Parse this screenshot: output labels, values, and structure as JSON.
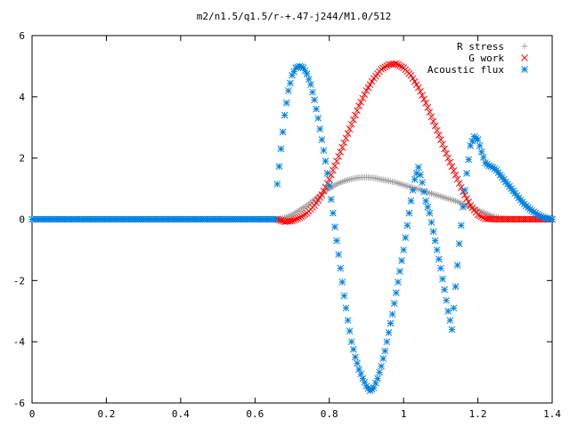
{
  "chart_data": {
    "type": "scatter",
    "title": "m2/n1.5/q1.5/r-+.47-j244/M1.0/512",
    "xlabel": "",
    "ylabel": "",
    "xlim": [
      0,
      1.4
    ],
    "ylim": [
      -6,
      6
    ],
    "xticks": [
      0,
      0.2,
      0.4,
      0.6,
      0.8,
      1,
      1.2,
      1.4
    ],
    "xtick_labels": [
      "0",
      "0.2",
      "0.4",
      "0.6",
      "0.8",
      "1",
      "1.2",
      "1.4"
    ],
    "yticks": [
      -6,
      -4,
      -2,
      0,
      2,
      4,
      6
    ],
    "ytick_labels": [
      "-6",
      "-4",
      "-2",
      "0",
      "2",
      "4",
      "6"
    ],
    "grid": false,
    "legend_position": "top-right",
    "series": [
      {
        "name": "R stress",
        "marker": "+",
        "color": "#a0a0a0",
        "points": [
          [
            0.0,
            0
          ],
          [
            0.2,
            0
          ],
          [
            0.4,
            0
          ],
          [
            0.6,
            0
          ],
          [
            0.66,
            0
          ],
          [
            0.68,
            0.05
          ],
          [
            0.7,
            0.15
          ],
          [
            0.72,
            0.3
          ],
          [
            0.74,
            0.45
          ],
          [
            0.76,
            0.65
          ],
          [
            0.78,
            0.85
          ],
          [
            0.8,
            1.0
          ],
          [
            0.82,
            1.15
          ],
          [
            0.84,
            1.25
          ],
          [
            0.86,
            1.32
          ],
          [
            0.88,
            1.36
          ],
          [
            0.9,
            1.37
          ],
          [
            0.92,
            1.35
          ],
          [
            0.94,
            1.3
          ],
          [
            0.96,
            1.25
          ],
          [
            0.98,
            1.2
          ],
          [
            1.0,
            1.12
          ],
          [
            1.02,
            1.05
          ],
          [
            1.04,
            0.98
          ],
          [
            1.06,
            0.9
          ],
          [
            1.08,
            0.82
          ],
          [
            1.1,
            0.75
          ],
          [
            1.12,
            0.67
          ],
          [
            1.14,
            0.6
          ],
          [
            1.16,
            0.5
          ],
          [
            1.18,
            0.4
          ],
          [
            1.2,
            0.3
          ],
          [
            1.22,
            0.2
          ],
          [
            1.24,
            0.1
          ],
          [
            1.26,
            0.04
          ],
          [
            1.28,
            0.01
          ],
          [
            1.3,
            0
          ],
          [
            1.35,
            0
          ],
          [
            1.4,
            0
          ]
        ]
      },
      {
        "name": "G work",
        "marker": "x",
        "color": "#ff0000",
        "points": [
          [
            0.66,
            0
          ],
          [
            0.68,
            -0.08
          ],
          [
            0.7,
            -0.05
          ],
          [
            0.72,
            0.05
          ],
          [
            0.74,
            0.2
          ],
          [
            0.76,
            0.45
          ],
          [
            0.78,
            0.8
          ],
          [
            0.8,
            1.3
          ],
          [
            0.82,
            1.9
          ],
          [
            0.84,
            2.5
          ],
          [
            0.86,
            3.1
          ],
          [
            0.88,
            3.7
          ],
          [
            0.9,
            4.2
          ],
          [
            0.92,
            4.6
          ],
          [
            0.94,
            4.9
          ],
          [
            0.96,
            5.05
          ],
          [
            0.98,
            5.08
          ],
          [
            1.0,
            4.95
          ],
          [
            1.02,
            4.7
          ],
          [
            1.04,
            4.3
          ],
          [
            1.06,
            3.8
          ],
          [
            1.08,
            3.2
          ],
          [
            1.1,
            2.6
          ],
          [
            1.12,
            2.0
          ],
          [
            1.14,
            1.45
          ],
          [
            1.16,
            0.9
          ],
          [
            1.18,
            0.45
          ],
          [
            1.2,
            0.15
          ],
          [
            1.22,
            0.02
          ],
          [
            1.24,
            0
          ],
          [
            1.28,
            0
          ],
          [
            1.32,
            0
          ],
          [
            1.36,
            0
          ],
          [
            1.4,
            0
          ]
        ]
      },
      {
        "name": "Acoustic flux",
        "marker": "*",
        "color": "#0080e0",
        "points": [
          [
            0.0,
            0
          ],
          [
            0.1,
            0
          ],
          [
            0.2,
            0
          ],
          [
            0.3,
            0
          ],
          [
            0.4,
            0
          ],
          [
            0.5,
            0
          ],
          [
            0.6,
            0
          ],
          [
            0.655,
            0
          ],
          [
            0.66,
            1.15
          ],
          [
            0.67,
            2.3
          ],
          [
            0.68,
            3.4
          ],
          [
            0.69,
            4.2
          ],
          [
            0.7,
            4.7
          ],
          [
            0.71,
            4.95
          ],
          [
            0.72,
            5.0
          ],
          [
            0.73,
            4.95
          ],
          [
            0.74,
            4.75
          ],
          [
            0.75,
            4.4
          ],
          [
            0.76,
            3.9
          ],
          [
            0.77,
            3.3
          ],
          [
            0.78,
            2.6
          ],
          [
            0.79,
            1.9
          ],
          [
            0.8,
            1.1
          ],
          [
            0.81,
            0.2
          ],
          [
            0.82,
            -0.7
          ],
          [
            0.83,
            -1.6
          ],
          [
            0.84,
            -2.5
          ],
          [
            0.85,
            -3.3
          ],
          [
            0.86,
            -4.0
          ],
          [
            0.87,
            -4.5
          ],
          [
            0.88,
            -4.9
          ],
          [
            0.89,
            -5.2
          ],
          [
            0.9,
            -5.45
          ],
          [
            0.91,
            -5.6
          ],
          [
            0.92,
            -5.5
          ],
          [
            0.93,
            -5.2
          ],
          [
            0.94,
            -4.8
          ],
          [
            0.95,
            -4.3
          ],
          [
            0.96,
            -3.7
          ],
          [
            0.97,
            -3.1
          ],
          [
            0.98,
            -2.4
          ],
          [
            0.99,
            -1.7
          ],
          [
            1.0,
            -1.0
          ],
          [
            1.01,
            -0.2
          ],
          [
            1.02,
            0.6
          ],
          [
            1.03,
            1.3
          ],
          [
            1.04,
            1.7
          ],
          [
            1.05,
            1.2
          ],
          [
            1.06,
            0.6
          ],
          [
            1.07,
            0.2
          ],
          [
            1.08,
            -0.4
          ],
          [
            1.09,
            -1.0
          ],
          [
            1.1,
            -1.6
          ],
          [
            1.11,
            -2.3
          ],
          [
            1.12,
            -3.0
          ],
          [
            1.13,
            -3.6
          ],
          [
            1.14,
            -2.2
          ],
          [
            1.15,
            -0.8
          ],
          [
            1.16,
            0.4
          ],
          [
            1.17,
            1.5
          ],
          [
            1.18,
            2.4
          ],
          [
            1.19,
            2.7
          ],
          [
            1.2,
            2.6
          ],
          [
            1.21,
            2.2
          ],
          [
            1.22,
            1.85
          ],
          [
            1.23,
            1.75
          ],
          [
            1.24,
            1.7
          ],
          [
            1.25,
            1.6
          ],
          [
            1.26,
            1.45
          ],
          [
            1.27,
            1.3
          ],
          [
            1.28,
            1.15
          ],
          [
            1.29,
            1.0
          ],
          [
            1.3,
            0.85
          ],
          [
            1.31,
            0.7
          ],
          [
            1.32,
            0.56
          ],
          [
            1.33,
            0.44
          ],
          [
            1.34,
            0.33
          ],
          [
            1.35,
            0.24
          ],
          [
            1.36,
            0.16
          ],
          [
            1.37,
            0.1
          ],
          [
            1.38,
            0.05
          ],
          [
            1.39,
            0.02
          ],
          [
            1.4,
            0
          ]
        ]
      }
    ]
  }
}
